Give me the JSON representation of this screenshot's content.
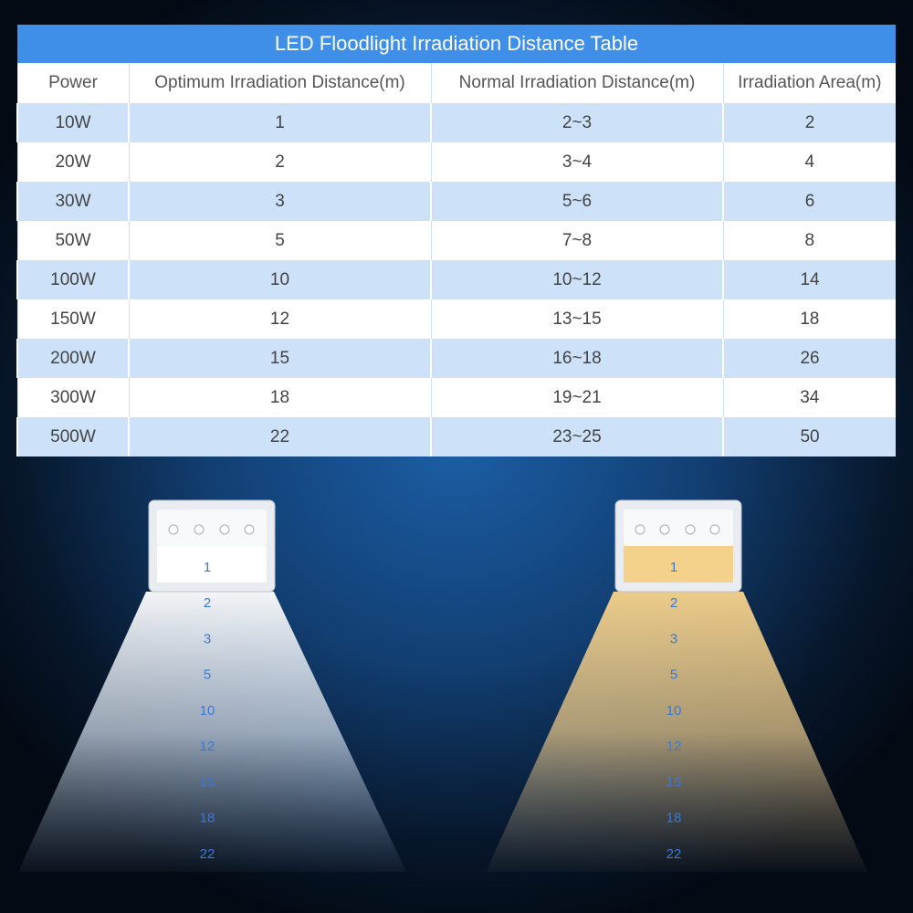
{
  "table": {
    "title": "LED Floodlight Irradiation Distance Table",
    "header": [
      "Power",
      "Optimum Irradiation Distance(m)",
      "Normal Irradiation Distance(m)",
      "Irradiation Area(m)"
    ],
    "rows": [
      [
        "10W",
        "1",
        "2~3",
        "2"
      ],
      [
        "20W",
        "2",
        "3~4",
        "4"
      ],
      [
        "30W",
        "3",
        "5~6",
        "6"
      ],
      [
        "50W",
        "5",
        "7~8",
        "8"
      ],
      [
        "100W",
        "10",
        "10~12",
        "14"
      ],
      [
        "150W",
        "12",
        "13~15",
        "18"
      ],
      [
        "200W",
        "15",
        "16~18",
        "26"
      ],
      [
        "300W",
        "18",
        "19~21",
        "34"
      ],
      [
        "500W",
        "22",
        "23~25",
        "50"
      ]
    ]
  },
  "beams": [
    {
      "labels": [
        "1",
        "2",
        "3",
        "5",
        "10",
        "12",
        "15",
        "18",
        "22"
      ]
    },
    {
      "labels": [
        "1",
        "2",
        "3",
        "5",
        "10",
        "12",
        "15",
        "18",
        "22"
      ]
    }
  ]
}
